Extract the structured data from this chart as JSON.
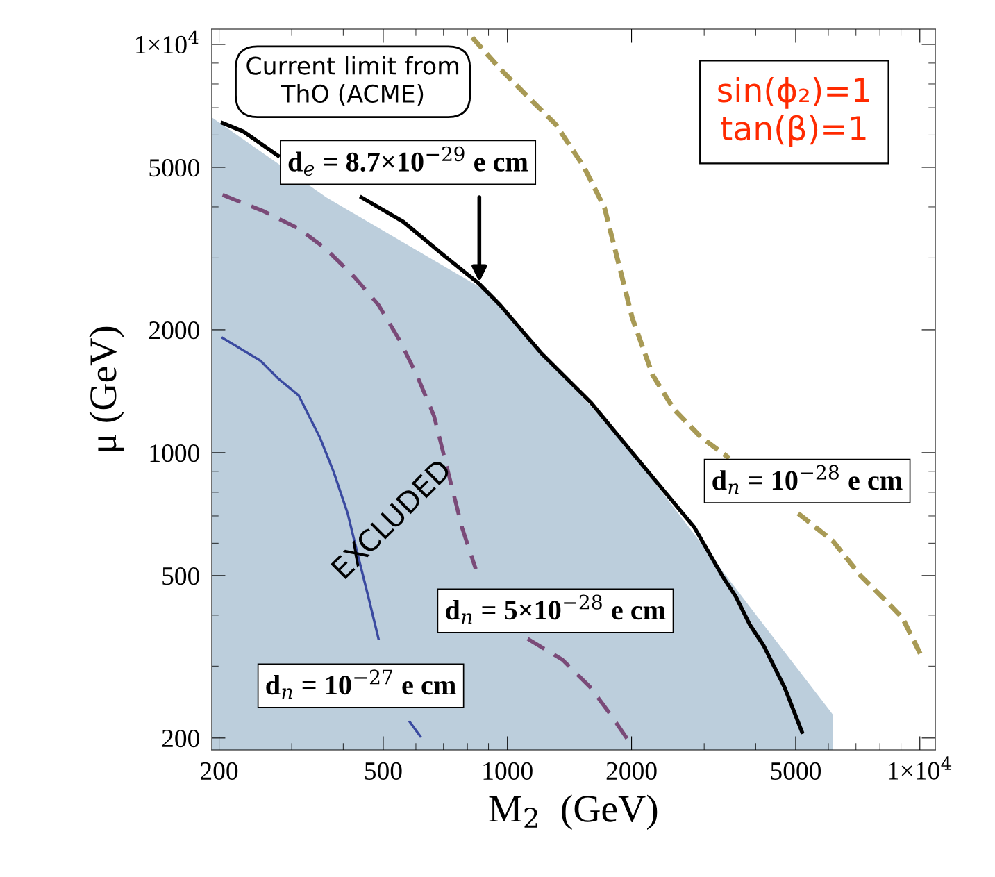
{
  "chart_data": {
    "type": "line",
    "xlabel": "M$_{2}$  (GeV)",
    "ylabel": "μ (GeV)",
    "log": "xy",
    "grid": false,
    "legend": false,
    "xlim": [
      192,
      10900
    ],
    "ylim": [
      187,
      10900
    ],
    "xticks": [
      200,
      500,
      1000,
      2000,
      5000,
      {
        "value": 10000,
        "label": "1×10$^{4}$"
      }
    ],
    "yticks": [
      200,
      500,
      1000,
      2000,
      5000,
      {
        "value": 10000,
        "label": "1×10$^{4}$"
      }
    ],
    "series": [
      {
        "type": "area",
        "color": "#b8cbda",
        "x": [
          192,
          364,
          889,
          1930,
          4180,
          6160,
          6160
        ],
        "values": [
          6630,
          4220,
          2490,
          1050,
          379,
          228,
          187
        ]
      },
      {
        "line_style": "solid",
        "color": "#000000",
        "x": [
          204,
          229,
          278,
          351,
          443,
          559,
          705,
          855,
          960,
          1210,
          1590,
          1930,
          2340,
          2840,
          3320,
          3580,
          3870,
          4180,
          4700,
          5180
        ],
        "values": [
          6420,
          6120,
          5340,
          null,
          4220,
          3680,
          3030,
          2590,
          2300,
          1750,
          1330,
          1050,
          830,
          656,
          499,
          444,
          379,
          337,
          266,
          207
        ]
      },
      {
        "line_style": "dashed",
        "color": "#a89a55",
        "x": [
          822,
          960,
          1120,
          1310,
          1530,
          1720,
          1860,
          2010,
          2250,
          2530,
          2950,
          3450,
          4180,
          5070,
          6160,
          7190,
          8400,
          9070,
          10190
        ],
        "values": [
          10400,
          8720,
          7450,
          6370,
          5030,
          3980,
          2910,
          2130,
          1550,
          1280,
          1090,
          970,
          null,
          710,
          607,
          499,
          427,
          394,
          311
        ]
      },
      {
        "line_style": "dashed",
        "color": "#7a4a78",
        "x": [
          204,
          257,
          312,
          364,
          426,
          487,
          547,
          603,
          664,
          718,
          776,
          838,
          960,
          1120,
          1360,
          1590,
          1780,
          1960
        ],
        "values": [
          4280,
          3900,
          3540,
          3150,
          2690,
          2300,
          1890,
          1550,
          1230,
          898,
          656,
          519,
          null,
          350,
          311,
          266,
          228,
          198
        ]
      },
      {
        "line_style": "solid",
        "color": "#3a4aa0",
        "x": [
          204,
          252,
          278,
          312,
          351,
          379,
          410,
          434,
          460,
          487,
          516,
          559,
          580,
          615
        ],
        "values": [
          1910,
          1680,
          1520,
          1380,
          1090,
          898,
          710,
          561,
          444,
          350,
          null,
          null,
          219,
          202
        ]
      }
    ],
    "annotations": [
      "Current limit from\nThO (ACME)",
      {
        "text": "d$_{e}$ = 8.7×10$^{−29}$ e cm",
        "x": 855,
        "y": 2590
      },
      "d$_{n}$ = 10$^{−28}$ e cm",
      "d$_{n}$ = 5×10$^{−28}$ e cm",
      "d$_{n}$ = 10$^{−27}$ e cm",
      "EXCLUDED",
      "sin(ϕ₂)=1\ntan(β)=1"
    ]
  }
}
